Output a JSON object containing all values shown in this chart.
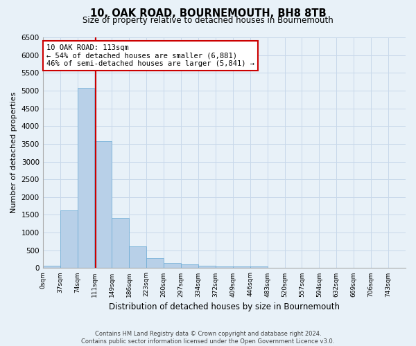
{
  "title": "10, OAK ROAD, BOURNEMOUTH, BH8 8TB",
  "subtitle": "Size of property relative to detached houses in Bournemouth",
  "xlabel": "Distribution of detached houses by size in Bournemouth",
  "ylabel": "Number of detached properties",
  "bin_labels": [
    "0sqm",
    "37sqm",
    "74sqm",
    "111sqm",
    "149sqm",
    "186sqm",
    "223sqm",
    "260sqm",
    "297sqm",
    "334sqm",
    "372sqm",
    "409sqm",
    "446sqm",
    "483sqm",
    "520sqm",
    "557sqm",
    "594sqm",
    "632sqm",
    "669sqm",
    "706sqm",
    "743sqm"
  ],
  "bar_values": [
    75,
    1620,
    5070,
    3570,
    1410,
    620,
    290,
    145,
    110,
    75,
    55,
    40,
    55,
    0,
    0,
    0,
    0,
    0,
    0,
    0,
    0
  ],
  "bar_color": "#b8d0e8",
  "bar_edge_color": "#6aaad4",
  "grid_color": "#c8d8ea",
  "background_color": "#e8f1f8",
  "property_line_x": 113,
  "property_line_label": "10 OAK ROAD: 113sqm",
  "annotation_line1": "← 54% of detached houses are smaller (6,881)",
  "annotation_line2": "46% of semi-detached houses are larger (5,841) →",
  "annotation_box_color": "#ffffff",
  "annotation_box_edge_color": "#cc0000",
  "red_line_color": "#cc0000",
  "ylim": [
    0,
    6500
  ],
  "yticks": [
    0,
    500,
    1000,
    1500,
    2000,
    2500,
    3000,
    3500,
    4000,
    4500,
    5000,
    5500,
    6000,
    6500
  ],
  "footer_line1": "Contains HM Land Registry data © Crown copyright and database right 2024.",
  "footer_line2": "Contains public sector information licensed under the Open Government Licence v3.0.",
  "bin_width": 37
}
